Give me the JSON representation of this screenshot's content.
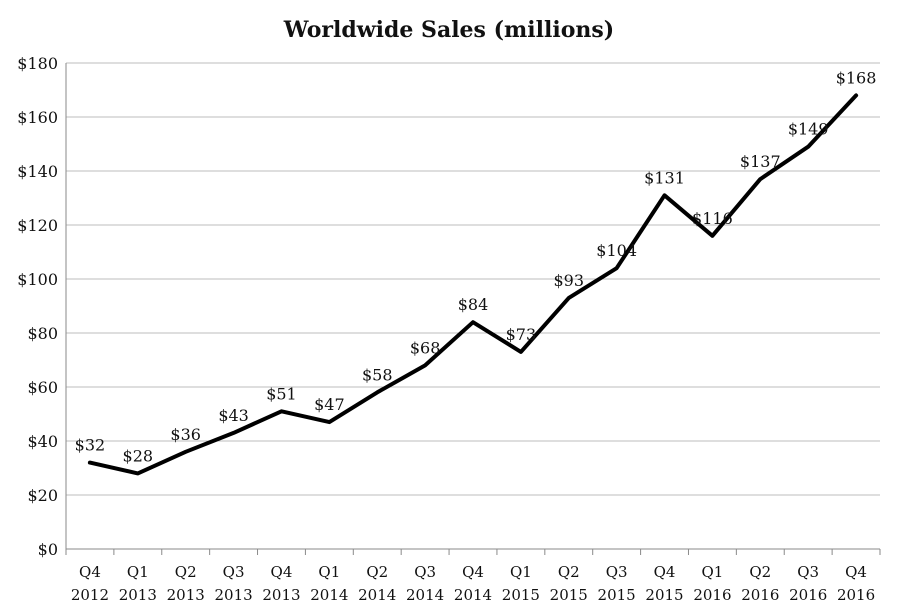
{
  "chart_data": {
    "type": "line",
    "title": "Worldwide Sales (millions)",
    "xlabel": "",
    "ylabel": "",
    "categories": [
      [
        "Q4",
        "2012"
      ],
      [
        "Q1",
        "2013"
      ],
      [
        "Q2",
        "2013"
      ],
      [
        "Q3",
        "2013"
      ],
      [
        "Q4",
        "2013"
      ],
      [
        "Q1",
        "2014"
      ],
      [
        "Q2",
        "2014"
      ],
      [
        "Q3",
        "2014"
      ],
      [
        "Q4",
        "2014"
      ],
      [
        "Q1",
        "2015"
      ],
      [
        "Q2",
        "2015"
      ],
      [
        "Q3",
        "2015"
      ],
      [
        "Q4",
        "2015"
      ],
      [
        "Q1",
        "2016"
      ],
      [
        "Q2",
        "2016"
      ],
      [
        "Q3",
        "2016"
      ],
      [
        "Q4",
        "2016"
      ]
    ],
    "series": [
      {
        "values": [
          32,
          28,
          36,
          43,
          51,
          47,
          58,
          68,
          84,
          73,
          93,
          104,
          131,
          116,
          137,
          149,
          168
        ],
        "labels": [
          "$32",
          "$28",
          "$36",
          "$43",
          "$51",
          "$47",
          "$58",
          "$68",
          "$84",
          "$73",
          "$93",
          "$104",
          "$131",
          "$116",
          "$137",
          "$149",
          "$168"
        ],
        "color": "#000000"
      }
    ],
    "ylim": [
      0,
      180
    ],
    "yticks": [
      0,
      20,
      40,
      60,
      80,
      100,
      120,
      140,
      160,
      180
    ],
    "ytick_labels": [
      "$0",
      "$20",
      "$40",
      "$60",
      "$80",
      "$100",
      "$120",
      "$140",
      "$160",
      "$180"
    ],
    "grid": true,
    "legend": "none"
  }
}
